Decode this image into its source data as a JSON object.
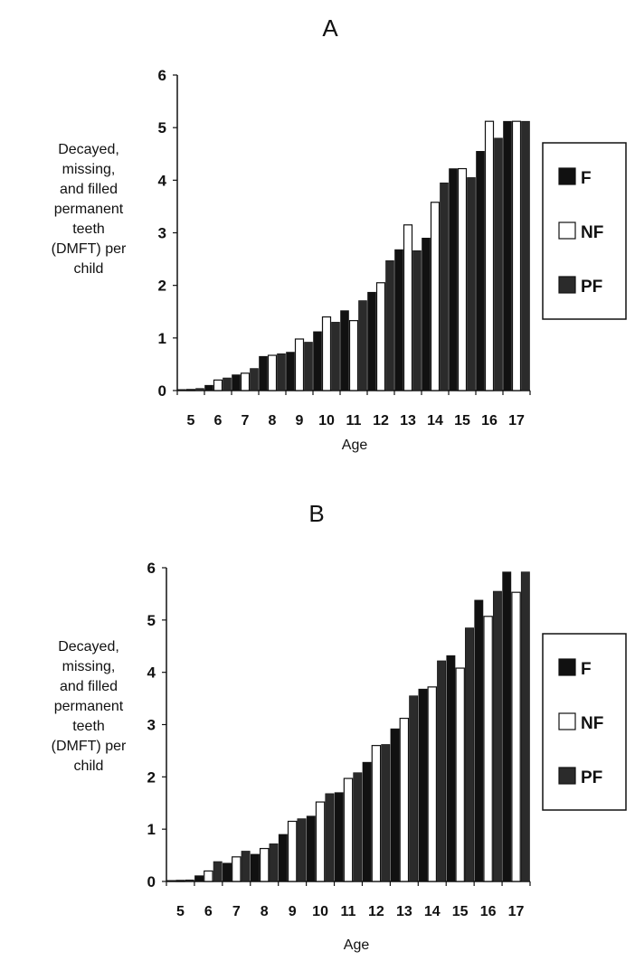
{
  "colors": {
    "F": "#111111",
    "NF": "#ffffff",
    "PF": "#2b2b2b"
  },
  "chart_data": [
    {
      "type": "bar",
      "title": "A",
      "xlabel": "Age",
      "ylabel_lines": [
        "Decayed,",
        "missing,",
        "and filled",
        "permanent",
        "teeth",
        "(DMFT) per",
        "child"
      ],
      "ylim": [
        0,
        6
      ],
      "yticks": [
        "0",
        "1",
        "2",
        "3",
        "4",
        "5",
        "6"
      ],
      "categories": [
        "5",
        "6",
        "7",
        "8",
        "9",
        "10",
        "11",
        "12",
        "13",
        "14",
        "15",
        "16",
        "17"
      ],
      "series": [
        {
          "name": "F",
          "values": [
            0.02,
            0.1,
            0.3,
            0.65,
            0.73,
            1.12,
            1.52,
            1.87,
            2.68,
            2.9,
            4.22,
            4.55,
            5.12
          ]
        },
        {
          "name": "NF",
          "values": [
            0.02,
            0.2,
            0.33,
            0.67,
            0.98,
            1.4,
            1.33,
            2.05,
            3.15,
            3.58,
            4.22,
            5.12,
            5.12
          ]
        },
        {
          "name": "PF",
          "values": [
            0.04,
            0.24,
            0.42,
            0.7,
            0.92,
            1.3,
            1.71,
            2.47,
            2.66,
            3.95,
            4.05,
            4.8,
            5.12
          ]
        }
      ],
      "legend": [
        "F",
        "NF",
        "PF"
      ],
      "legend_position": "right"
    },
    {
      "type": "bar",
      "title": "B",
      "xlabel": "Age",
      "ylabel_lines": [
        "Decayed,",
        "missing,",
        "and filled",
        "permanent",
        "teeth",
        "(DMFT) per",
        "child"
      ],
      "ylim": [
        0,
        6
      ],
      "yticks": [
        "0",
        "1",
        "2",
        "3",
        "4",
        "5",
        "6"
      ],
      "categories": [
        "5",
        "6",
        "7",
        "8",
        "9",
        "10",
        "11",
        "12",
        "13",
        "14",
        "15",
        "16",
        "17"
      ],
      "series": [
        {
          "name": "F",
          "values": [
            0.02,
            0.11,
            0.35,
            0.52,
            0.9,
            1.25,
            1.7,
            2.28,
            2.92,
            3.68,
            4.32,
            5.38,
            5.92
          ]
        },
        {
          "name": "NF",
          "values": [
            0.02,
            0.2,
            0.47,
            0.63,
            1.15,
            1.52,
            1.97,
            2.6,
            3.12,
            3.72,
            4.08,
            5.07,
            5.53
          ]
        },
        {
          "name": "PF",
          "values": [
            0.03,
            0.38,
            0.58,
            0.72,
            1.2,
            1.68,
            2.08,
            2.62,
            3.55,
            4.22,
            4.85,
            5.55,
            5.92
          ]
        }
      ],
      "legend": [
        "F",
        "NF",
        "PF"
      ],
      "legend_position": "right"
    }
  ]
}
